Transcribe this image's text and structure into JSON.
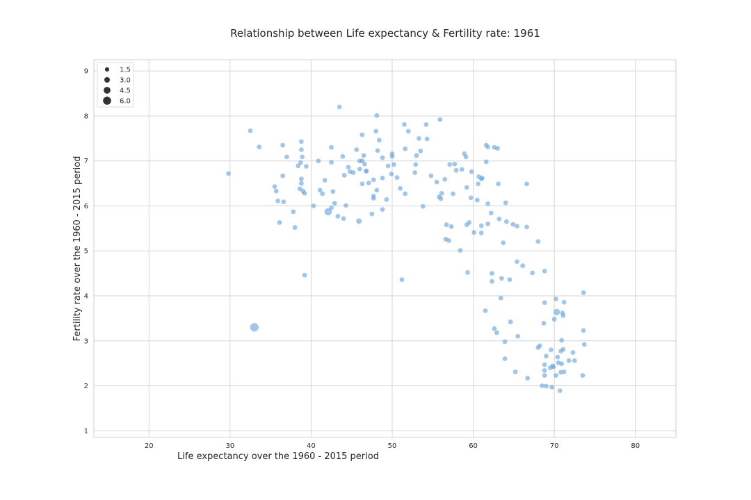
{
  "chart_data": {
    "type": "scatter",
    "title": "Relationship between Life expectancy & Fertility rate: 1961",
    "xlabel": "Life expectancy over the 1960 - 2015 period",
    "ylabel": "Fertility rate over the  1960 - 2015 period",
    "xlim": [
      13.2,
      85
    ],
    "ylim": [
      0.85,
      9.25
    ],
    "xticks": [
      20,
      30,
      40,
      50,
      60,
      70,
      80
    ],
    "yticks": [
      1,
      2,
      3,
      4,
      5,
      6,
      7,
      8,
      9
    ],
    "grid": true,
    "color": "#6fa8dc",
    "legend": {
      "placement": "top-left",
      "sizes": [
        1.5,
        3.0,
        4.5,
        6.0
      ],
      "labels": [
        "1.5",
        "3.0",
        "4.5",
        "6.0"
      ]
    },
    "points": [
      [
        29.8,
        6.72,
        0.8
      ],
      [
        32.5,
        7.67,
        0.8
      ],
      [
        33.6,
        7.31,
        0.8
      ],
      [
        35.5,
        6.43,
        0.8
      ],
      [
        35.7,
        6.33,
        0.8
      ],
      [
        35.9,
        6.11,
        0.8
      ],
      [
        36.1,
        5.63,
        0.8
      ],
      [
        36.5,
        7.35,
        0.8
      ],
      [
        36.5,
        6.67,
        0.8
      ],
      [
        36.6,
        6.09,
        0.8
      ],
      [
        37,
        7.09,
        0.8
      ],
      [
        37.8,
        5.87,
        0.8
      ],
      [
        38.0,
        5.52,
        0.8
      ],
      [
        38.4,
        6.89,
        0.8
      ],
      [
        38.6,
        6.38,
        0.8
      ],
      [
        38.7,
        6.96,
        0.8
      ],
      [
        38.8,
        7.43,
        0.8
      ],
      [
        38.8,
        7.25,
        0.8
      ],
      [
        38.9,
        7.09,
        0.8
      ],
      [
        38.8,
        6.6,
        0.8
      ],
      [
        38.8,
        6.5,
        0.8
      ],
      [
        39,
        6.33,
        0.8
      ],
      [
        39.2,
        6.28,
        0.8
      ],
      [
        39.4,
        6.88,
        0.8
      ],
      [
        39.2,
        4.46,
        0.8
      ],
      [
        40.3,
        6.0,
        0.8
      ],
      [
        40.9,
        7.0,
        0.8
      ],
      [
        41.1,
        6.35,
        0.8
      ],
      [
        41.4,
        6.27,
        0.8
      ],
      [
        41.7,
        6.57,
        0.8
      ],
      [
        42.1,
        5.87,
        2.0
      ],
      [
        42.5,
        7.3,
        0.8
      ],
      [
        42.5,
        6.97,
        0.8
      ],
      [
        42.5,
        5.96,
        0.8
      ],
      [
        42.7,
        6.32,
        0.8
      ],
      [
        42.9,
        6.06,
        0.8
      ],
      [
        43.3,
        5.77,
        0.8
      ],
      [
        43.5,
        8.2,
        0.8
      ],
      [
        43.9,
        7.1,
        0.8
      ],
      [
        44.0,
        5.72,
        0.8
      ],
      [
        44.1,
        6.68,
        0.8
      ],
      [
        44.3,
        6.01,
        0.8
      ],
      [
        44.6,
        6.86,
        0.8
      ],
      [
        44.8,
        6.76,
        0.8
      ],
      [
        45.2,
        6.74,
        0.8
      ],
      [
        45.6,
        7.25,
        0.8
      ],
      [
        45.9,
        5.66,
        1.2
      ],
      [
        46.0,
        7.0,
        0.8
      ],
      [
        46.0,
        6.82,
        0.8
      ],
      [
        46.3,
        7.58,
        0.8
      ],
      [
        46.3,
        7.0,
        0.8
      ],
      [
        46.3,
        6.49,
        0.8
      ],
      [
        46.5,
        7.12,
        0.8
      ],
      [
        46.6,
        6.93,
        0.8
      ],
      [
        46.8,
        6.78,
        0.8
      ],
      [
        46.8,
        6.77,
        0.8
      ],
      [
        47.1,
        6.51,
        0.8
      ],
      [
        47.5,
        5.82,
        0.8
      ],
      [
        47.7,
        6.58,
        0.8
      ],
      [
        47.7,
        6.22,
        0.8
      ],
      [
        47.7,
        6.17,
        0.8
      ],
      [
        48.0,
        7.66,
        0.8
      ],
      [
        48.1,
        8.01,
        0.8
      ],
      [
        48.1,
        6.35,
        0.8
      ],
      [
        48.2,
        7.23,
        0.8
      ],
      [
        48.4,
        7.46,
        0.8
      ],
      [
        48.8,
        7.07,
        0.8
      ],
      [
        48.8,
        6.62,
        0.8
      ],
      [
        48.8,
        5.92,
        0.8
      ],
      [
        49.3,
        6.14,
        0.8
      ],
      [
        49.5,
        6.89,
        0.8
      ],
      [
        49.9,
        6.71,
        0.8
      ],
      [
        50.0,
        7.16,
        0.8
      ],
      [
        50.0,
        7.1,
        0.8
      ],
      [
        50.2,
        6.92,
        0.8
      ],
      [
        50.6,
        6.63,
        0.8
      ],
      [
        51.0,
        6.39,
        0.8
      ],
      [
        51.2,
        4.36,
        0.8
      ],
      [
        51.5,
        7.81,
        0.8
      ],
      [
        51.6,
        7.27,
        0.8
      ],
      [
        51.6,
        6.27,
        0.8
      ],
      [
        52.0,
        7.66,
        0.8
      ],
      [
        52.8,
        6.74,
        0.8
      ],
      [
        52.9,
        6.92,
        0.8
      ],
      [
        53,
        7.12,
        0.8
      ],
      [
        53.3,
        7.5,
        0.8
      ],
      [
        53.5,
        7.22,
        0.8
      ],
      [
        53.8,
        5.99,
        0.8
      ],
      [
        54.2,
        7.81,
        0.8
      ],
      [
        54.3,
        7.49,
        0.8
      ],
      [
        54.8,
        6.67,
        0.8
      ],
      [
        55.5,
        6.53,
        0.8
      ],
      [
        55.8,
        6.2,
        0.8
      ],
      [
        56.0,
        6.16,
        0.8
      ],
      [
        55.9,
        7.92,
        0.8
      ],
      [
        56.1,
        6.28,
        0.8
      ],
      [
        56.5,
        6.59,
        0.8
      ],
      [
        56.6,
        5.26,
        0.8
      ],
      [
        56.7,
        5.58,
        0.8
      ],
      [
        57,
        5.23,
        0.8
      ],
      [
        57.1,
        6.92,
        0.8
      ],
      [
        57.3,
        5.54,
        0.8
      ],
      [
        57.5,
        6.27,
        0.8
      ],
      [
        57.7,
        6.93,
        0.8
      ],
      [
        57.9,
        6.79,
        0.8
      ],
      [
        58.4,
        5.01,
        0.8
      ],
      [
        58.6,
        6.81,
        0.8
      ],
      [
        58.9,
        7.16,
        0.8
      ],
      [
        59.1,
        7.09,
        0.8
      ],
      [
        59.2,
        6.41,
        0.8
      ],
      [
        59.2,
        5.58,
        0.8
      ],
      [
        59.3,
        4.52,
        0.8
      ],
      [
        59.5,
        5.63,
        0.8
      ],
      [
        59.7,
        6.18,
        0.8
      ],
      [
        59.8,
        6.76,
        0.8
      ],
      [
        60.1,
        5.41,
        0.8
      ],
      [
        60.5,
        6.13,
        0.8
      ],
      [
        60.6,
        6.49,
        0.8
      ],
      [
        60.7,
        6.65,
        0.8
      ],
      [
        61.0,
        6.6,
        0.8
      ],
      [
        61.1,
        6.62,
        0.8
      ],
      [
        61.0,
        5.56,
        0.8
      ],
      [
        61.0,
        5.4,
        0.8
      ],
      [
        61.5,
        3.67,
        0.8
      ],
      [
        61.6,
        7.35,
        0.8
      ],
      [
        61.6,
        6.98,
        0.8
      ],
      [
        61.8,
        7.31,
        0.8
      ],
      [
        61.8,
        6.05,
        0.8
      ],
      [
        61.8,
        5.6,
        0.8
      ],
      [
        62.2,
        5.84,
        0.8
      ],
      [
        62.3,
        4.5,
        0.8
      ],
      [
        62.3,
        4.32,
        0.8
      ],
      [
        62.6,
        7.3,
        0.8
      ],
      [
        62.6,
        3.27,
        0.8
      ],
      [
        62.9,
        3.18,
        0.8
      ],
      [
        63.0,
        7.28,
        0.8
      ],
      [
        63.1,
        6.49,
        0.8
      ],
      [
        63.2,
        5.71,
        0.8
      ],
      [
        63.4,
        3.95,
        0.8
      ],
      [
        63.5,
        4.39,
        0.8
      ],
      [
        63.7,
        5.18,
        0.8
      ],
      [
        63.9,
        2.98,
        0.8
      ],
      [
        63.9,
        2.6,
        0.8
      ],
      [
        64.0,
        6.07,
        0.8
      ],
      [
        64.1,
        5.65,
        0.8
      ],
      [
        64.5,
        4.36,
        0.8
      ],
      [
        64.6,
        3.42,
        0.8
      ],
      [
        64.9,
        5.59,
        0.8
      ],
      [
        65.2,
        2.31,
        0.8
      ],
      [
        65.4,
        5.55,
        0.8
      ],
      [
        65.4,
        4.76,
        0.8
      ],
      [
        65.5,
        3.1,
        0.8
      ],
      [
        66.1,
        4.67,
        0.8
      ],
      [
        66.6,
        6.49,
        0.8
      ],
      [
        66.6,
        5.53,
        0.8
      ],
      [
        66.7,
        2.17,
        0.8
      ],
      [
        67.3,
        4.51,
        0.8
      ],
      [
        68.0,
        5.21,
        0.8
      ],
      [
        68,
        2.85,
        0.8
      ],
      [
        68.2,
        2.89,
        0.8
      ],
      [
        68.5,
        2.0,
        0.8
      ],
      [
        68.7,
        3.39,
        0.8
      ],
      [
        68.8,
        4.55,
        0.8
      ],
      [
        68.8,
        3.85,
        0.8
      ],
      [
        68.8,
        2.47,
        0.8
      ],
      [
        68.8,
        2.34,
        0.8
      ],
      [
        68.8,
        2.23,
        0.8
      ],
      [
        69.0,
        2.66,
        0.8
      ],
      [
        69.0,
        1.99,
        0.8
      ],
      [
        69.5,
        2.4,
        0.8
      ],
      [
        69.6,
        2.8,
        0.8
      ],
      [
        69.7,
        1.97,
        0.8
      ],
      [
        69.8,
        2.44,
        0.8
      ],
      [
        69.9,
        2.42,
        0.8
      ],
      [
        70.0,
        3.48,
        0.8
      ],
      [
        70.2,
        3.93,
        0.8
      ],
      [
        70.2,
        2.23,
        0.8
      ],
      [
        70.3,
        3.64,
        1.6
      ],
      [
        70.4,
        2.64,
        0.8
      ],
      [
        70.5,
        2.51,
        0.8
      ],
      [
        70.7,
        1.89,
        0.8
      ],
      [
        70.8,
        2.77,
        0.8
      ],
      [
        70.8,
        2.3,
        0.8
      ],
      [
        70.9,
        3.01,
        0.8
      ],
      [
        70.9,
        2.49,
        0.8
      ],
      [
        71.0,
        3.62,
        0.8
      ],
      [
        71.1,
        3.56,
        0.8
      ],
      [
        71.1,
        2.81,
        0.8
      ],
      [
        71.2,
        2.31,
        0.8
      ],
      [
        71.2,
        3.86,
        0.8
      ],
      [
        71.8,
        2.56,
        0.8
      ],
      [
        72.3,
        2.74,
        0.8
      ],
      [
        72.5,
        2.56,
        0.8
      ],
      [
        73.5,
        2.23,
        0.8
      ],
      [
        73.6,
        3.23,
        0.8
      ],
      [
        73.6,
        4.07,
        0.8
      ],
      [
        73.7,
        2.92,
        0.8
      ],
      [
        33.0,
        3.3,
        2.5
      ]
    ]
  }
}
